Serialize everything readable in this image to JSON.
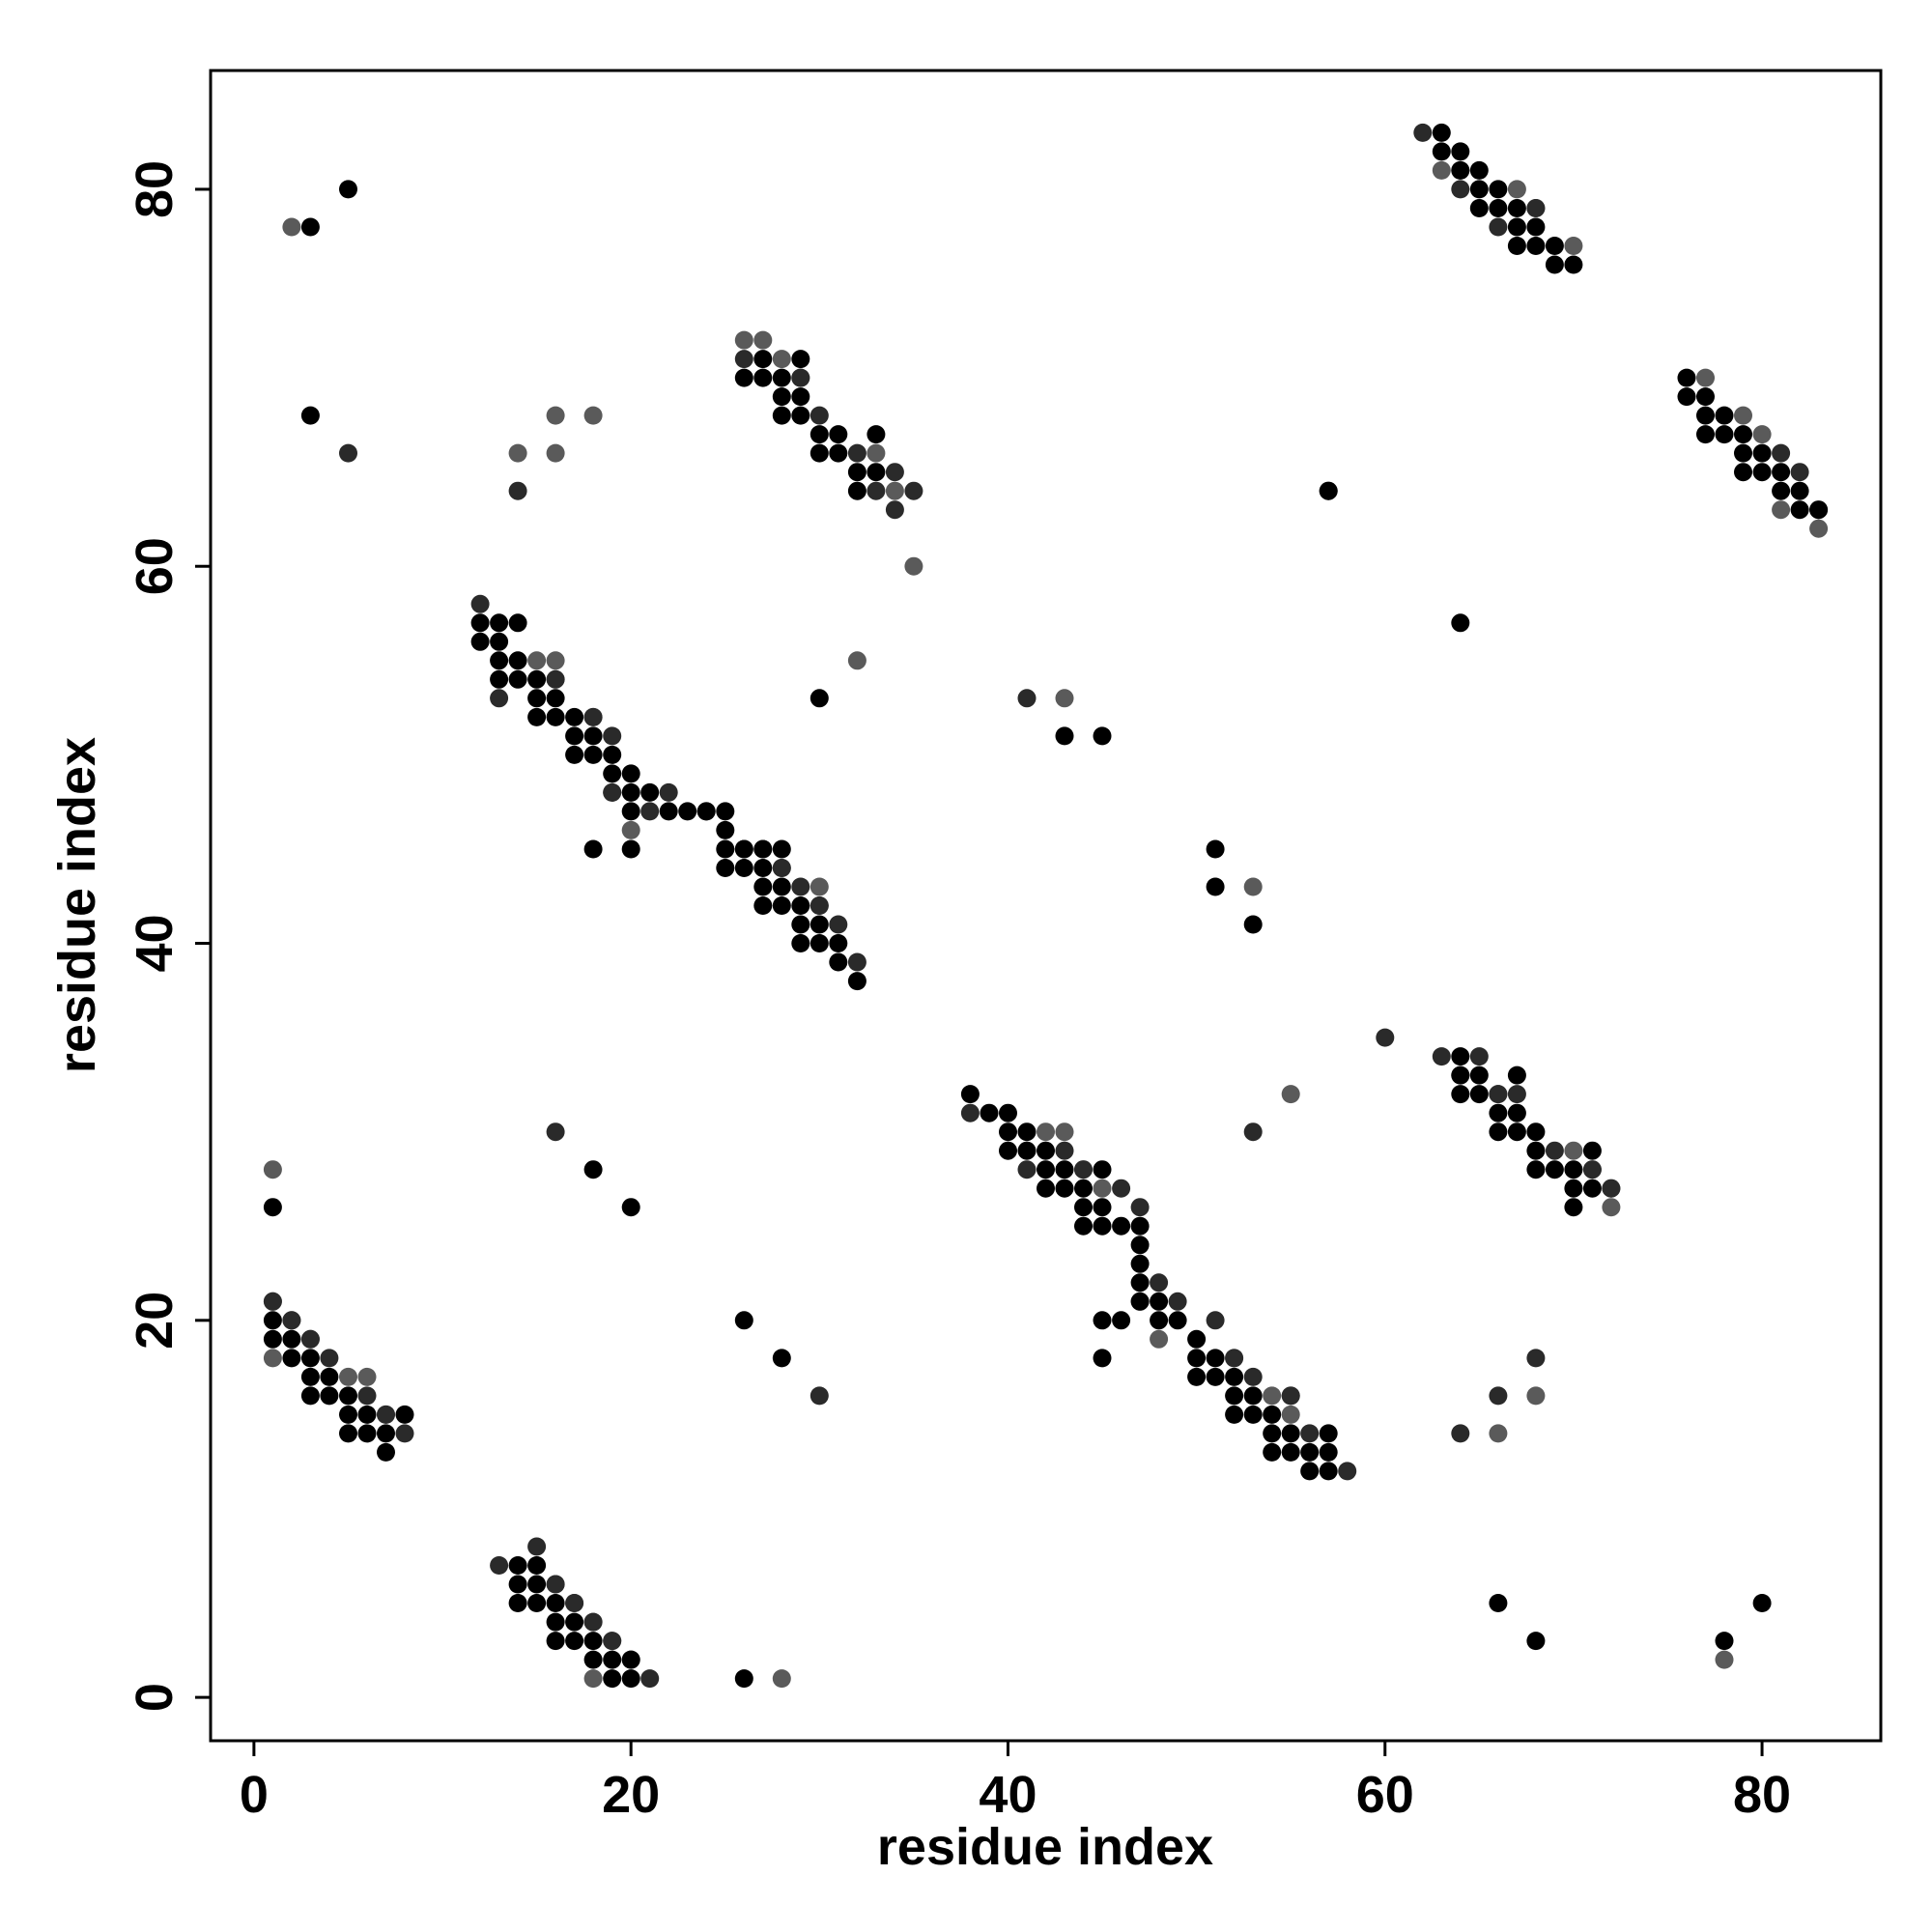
{
  "chart_data": {
    "type": "scatter",
    "title": "",
    "xlabel": "residue index",
    "ylabel": "residue index",
    "xlim": [
      -2.3,
      86.3
    ],
    "ylim": [
      -2.3,
      86.3
    ],
    "x_ticks": [
      0,
      20,
      40,
      60,
      80
    ],
    "y_ticks": [
      0,
      20,
      40,
      60,
      80
    ],
    "grid": false,
    "colors": {
      "dark": "#000000",
      "mid": "#2a2a2a",
      "light": "#5a5a5a"
    },
    "points_dark": [
      [
        3,
        78
      ],
      [
        5,
        80
      ],
      [
        3,
        68
      ],
      [
        26,
        70
      ],
      [
        27,
        71
      ],
      [
        28,
        70
      ],
      [
        29,
        71
      ],
      [
        27,
        70
      ],
      [
        28,
        69
      ],
      [
        29,
        69
      ],
      [
        28,
        68
      ],
      [
        29,
        68
      ],
      [
        30,
        67
      ],
      [
        31,
        67
      ],
      [
        30,
        66
      ],
      [
        31,
        66
      ],
      [
        32,
        65
      ],
      [
        33,
        65
      ],
      [
        32,
        64
      ],
      [
        33,
        67
      ],
      [
        13,
        57
      ],
      [
        14,
        57
      ],
      [
        12,
        57
      ],
      [
        12,
        56
      ],
      [
        13,
        56
      ],
      [
        13,
        55
      ],
      [
        14,
        55
      ],
      [
        13,
        54
      ],
      [
        14,
        54
      ],
      [
        15,
        54
      ],
      [
        15,
        53
      ],
      [
        16,
        53
      ],
      [
        15,
        52
      ],
      [
        16,
        52
      ],
      [
        17,
        52
      ],
      [
        17,
        51
      ],
      [
        18,
        51
      ],
      [
        17,
        50
      ],
      [
        18,
        50
      ],
      [
        19,
        50
      ],
      [
        19,
        49
      ],
      [
        20,
        49
      ],
      [
        20,
        48
      ],
      [
        21,
        48
      ],
      [
        20,
        47
      ],
      [
        22,
        47
      ],
      [
        23,
        47
      ],
      [
        24,
        47
      ],
      [
        25,
        47
      ],
      [
        25,
        46
      ],
      [
        25,
        45
      ],
      [
        26,
        45
      ],
      [
        27,
        45
      ],
      [
        28,
        45
      ],
      [
        25,
        44
      ],
      [
        26,
        44
      ],
      [
        27,
        44
      ],
      [
        27,
        43
      ],
      [
        28,
        43
      ],
      [
        27,
        42
      ],
      [
        28,
        42
      ],
      [
        29,
        42
      ],
      [
        29,
        41
      ],
      [
        30,
        41
      ],
      [
        29,
        40
      ],
      [
        30,
        40
      ],
      [
        31,
        40
      ],
      [
        31,
        39
      ],
      [
        32,
        38
      ],
      [
        18,
        45
      ],
      [
        20,
        45
      ],
      [
        30,
        53
      ],
      [
        43,
        51
      ],
      [
        45,
        51
      ],
      [
        51,
        45
      ],
      [
        51,
        43
      ],
      [
        53,
        41
      ],
      [
        64,
        57
      ],
      [
        57,
        64
      ],
      [
        63,
        83
      ],
      [
        63,
        82
      ],
      [
        64,
        82
      ],
      [
        64,
        81
      ],
      [
        65,
        81
      ],
      [
        65,
        80
      ],
      [
        66,
        80
      ],
      [
        65,
        79
      ],
      [
        66,
        79
      ],
      [
        67,
        79
      ],
      [
        67,
        78
      ],
      [
        68,
        78
      ],
      [
        67,
        77
      ],
      [
        68,
        77
      ],
      [
        69,
        77
      ],
      [
        69,
        76
      ],
      [
        70,
        76
      ],
      [
        76,
        70
      ],
      [
        76,
        69
      ],
      [
        77,
        69
      ],
      [
        77,
        68
      ],
      [
        78,
        68
      ],
      [
        77,
        67
      ],
      [
        78,
        67
      ],
      [
        79,
        67
      ],
      [
        79,
        66
      ],
      [
        80,
        66
      ],
      [
        79,
        65
      ],
      [
        80,
        65
      ],
      [
        81,
        65
      ],
      [
        81,
        64
      ],
      [
        82,
        64
      ],
      [
        82,
        63
      ],
      [
        83,
        63
      ],
      [
        38,
        32
      ],
      [
        39,
        31
      ],
      [
        40,
        31
      ],
      [
        40,
        30
      ],
      [
        41,
        30
      ],
      [
        40,
        29
      ],
      [
        41,
        29
      ],
      [
        42,
        29
      ],
      [
        42,
        28
      ],
      [
        43,
        28
      ],
      [
        45,
        28
      ],
      [
        42,
        27
      ],
      [
        43,
        27
      ],
      [
        44,
        27
      ],
      [
        44,
        26
      ],
      [
        45,
        26
      ],
      [
        44,
        25
      ],
      [
        45,
        25
      ],
      [
        46,
        25
      ],
      [
        47,
        25
      ],
      [
        47,
        24
      ],
      [
        47,
        23
      ],
      [
        47,
        22
      ],
      [
        47,
        21
      ],
      [
        48,
        21
      ],
      [
        48,
        20
      ],
      [
        49,
        20
      ],
      [
        45,
        20
      ],
      [
        46,
        20
      ],
      [
        50,
        19
      ],
      [
        50,
        18
      ],
      [
        51,
        18
      ],
      [
        50,
        17
      ],
      [
        51,
        17
      ],
      [
        52,
        17
      ],
      [
        52,
        16
      ],
      [
        53,
        16
      ],
      [
        52,
        15
      ],
      [
        53,
        15
      ],
      [
        54,
        15
      ],
      [
        54,
        14
      ],
      [
        55,
        14
      ],
      [
        54,
        13
      ],
      [
        55,
        13
      ],
      [
        56,
        13
      ],
      [
        57,
        13
      ],
      [
        56,
        12
      ],
      [
        57,
        12
      ],
      [
        57,
        14
      ],
      [
        45,
        18
      ],
      [
        64,
        34
      ],
      [
        64,
        32
      ],
      [
        65,
        32
      ],
      [
        65,
        33
      ],
      [
        66,
        31
      ],
      [
        67,
        31
      ],
      [
        66,
        30
      ],
      [
        67,
        30
      ],
      [
        68,
        30
      ],
      [
        68,
        29
      ],
      [
        68,
        28
      ],
      [
        69,
        28
      ],
      [
        70,
        28
      ],
      [
        70,
        27
      ],
      [
        71,
        27
      ],
      [
        70,
        26
      ],
      [
        71,
        29
      ],
      [
        67,
        33
      ],
      [
        64,
        33
      ],
      [
        18,
        28
      ],
      [
        20,
        26
      ],
      [
        1,
        26
      ],
      [
        1,
        20
      ],
      [
        1,
        19
      ],
      [
        2,
        19
      ],
      [
        2,
        18
      ],
      [
        3,
        18
      ],
      [
        3,
        17
      ],
      [
        4,
        17
      ],
      [
        3,
        16
      ],
      [
        4,
        16
      ],
      [
        5,
        16
      ],
      [
        5,
        15
      ],
      [
        6,
        15
      ],
      [
        5,
        14
      ],
      [
        6,
        14
      ],
      [
        7,
        14
      ],
      [
        7,
        13
      ],
      [
        8,
        15
      ],
      [
        26,
        20
      ],
      [
        28,
        18
      ],
      [
        14,
        7
      ],
      [
        15,
        7
      ],
      [
        14,
        6
      ],
      [
        15,
        6
      ],
      [
        14,
        5
      ],
      [
        15,
        5
      ],
      [
        16,
        5
      ],
      [
        16,
        4
      ],
      [
        17,
        4
      ],
      [
        16,
        3
      ],
      [
        17,
        3
      ],
      [
        18,
        3
      ],
      [
        18,
        2
      ],
      [
        19,
        2
      ],
      [
        19,
        1
      ],
      [
        20,
        1
      ],
      [
        20,
        2
      ],
      [
        26,
        1
      ],
      [
        66,
        5
      ],
      [
        68,
        3
      ],
      [
        78,
        3
      ],
      [
        80,
        5
      ]
    ],
    "points_mid": [
      [
        5,
        66
      ],
      [
        14,
        64
      ],
      [
        62,
        83
      ],
      [
        64,
        80
      ],
      [
        66,
        78
      ],
      [
        68,
        79
      ],
      [
        81,
        66
      ],
      [
        82,
        65
      ],
      [
        83,
        63
      ],
      [
        26,
        71
      ],
      [
        30,
        68
      ],
      [
        32,
        66
      ],
      [
        34,
        65
      ],
      [
        35,
        64
      ],
      [
        33,
        64
      ],
      [
        34,
        63
      ],
      [
        29,
        70
      ],
      [
        12,
        58
      ],
      [
        13,
        53
      ],
      [
        16,
        54
      ],
      [
        18,
        52
      ],
      [
        19,
        51
      ],
      [
        19,
        48
      ],
      [
        21,
        47
      ],
      [
        22,
        48
      ],
      [
        24,
        47
      ],
      [
        26,
        45
      ],
      [
        28,
        44
      ],
      [
        29,
        43
      ],
      [
        30,
        42
      ],
      [
        31,
        41
      ],
      [
        32,
        39
      ],
      [
        41,
        53
      ],
      [
        38,
        31
      ],
      [
        41,
        28
      ],
      [
        43,
        29
      ],
      [
        44,
        28
      ],
      [
        46,
        27
      ],
      [
        47,
        26
      ],
      [
        48,
        22
      ],
      [
        49,
        21
      ],
      [
        51,
        20
      ],
      [
        52,
        18
      ],
      [
        53,
        17
      ],
      [
        55,
        16
      ],
      [
        56,
        14
      ],
      [
        58,
        12
      ],
      [
        60,
        35
      ],
      [
        63,
        34
      ],
      [
        65,
        34
      ],
      [
        66,
        32
      ],
      [
        67,
        32
      ],
      [
        69,
        29
      ],
      [
        71,
        28
      ],
      [
        72,
        27
      ],
      [
        64,
        14
      ],
      [
        66,
        16
      ],
      [
        68,
        18
      ],
      [
        57,
        64
      ],
      [
        53,
        30
      ],
      [
        16,
        30
      ],
      [
        4,
        18
      ],
      [
        3,
        19
      ],
      [
        2,
        20
      ],
      [
        6,
        16
      ],
      [
        8,
        14
      ],
      [
        7,
        15
      ],
      [
        13,
        7
      ],
      [
        15,
        8
      ],
      [
        16,
        6
      ],
      [
        17,
        5
      ],
      [
        18,
        4
      ],
      [
        19,
        3
      ],
      [
        21,
        1
      ],
      [
        30,
        16
      ],
      [
        1,
        21
      ]
    ],
    "points_light": [
      [
        2,
        78
      ],
      [
        14,
        66
      ],
      [
        16,
        66
      ],
      [
        16,
        68
      ],
      [
        18,
        68
      ],
      [
        26,
        72
      ],
      [
        27,
        72
      ],
      [
        28,
        71
      ],
      [
        29,
        70
      ],
      [
        33,
        66
      ],
      [
        34,
        64
      ],
      [
        35,
        60
      ],
      [
        15,
        55
      ],
      [
        16,
        55
      ],
      [
        16,
        54
      ],
      [
        18,
        52
      ],
      [
        19,
        48
      ],
      [
        20,
        46
      ],
      [
        28,
        44
      ],
      [
        27,
        45
      ],
      [
        30,
        43
      ],
      [
        30,
        42
      ],
      [
        32,
        55
      ],
      [
        43,
        53
      ],
      [
        63,
        81
      ],
      [
        64,
        81
      ],
      [
        67,
        80
      ],
      [
        68,
        79
      ],
      [
        70,
        77
      ],
      [
        77,
        70
      ],
      [
        79,
        68
      ],
      [
        80,
        67
      ],
      [
        81,
        63
      ],
      [
        83,
        62
      ],
      [
        42,
        30
      ],
      [
        43,
        30
      ],
      [
        44,
        28
      ],
      [
        45,
        27
      ],
      [
        47,
        21
      ],
      [
        48,
        19
      ],
      [
        52,
        18
      ],
      [
        54,
        16
      ],
      [
        55,
        16
      ],
      [
        55,
        15
      ],
      [
        64,
        33
      ],
      [
        66,
        32
      ],
      [
        70,
        29
      ],
      [
        71,
        28
      ],
      [
        72,
        27
      ],
      [
        72,
        26
      ],
      [
        55,
        32
      ],
      [
        53,
        43
      ],
      [
        1,
        28
      ],
      [
        1,
        21
      ],
      [
        1,
        18
      ],
      [
        2,
        20
      ],
      [
        3,
        19
      ],
      [
        5,
        17
      ],
      [
        6,
        17
      ],
      [
        7,
        15
      ],
      [
        16,
        6
      ],
      [
        17,
        5
      ],
      [
        18,
        4
      ],
      [
        19,
        3
      ],
      [
        18,
        1
      ],
      [
        20,
        2
      ],
      [
        28,
        1
      ],
      [
        66,
        14
      ],
      [
        68,
        16
      ],
      [
        78,
        2
      ]
    ]
  }
}
